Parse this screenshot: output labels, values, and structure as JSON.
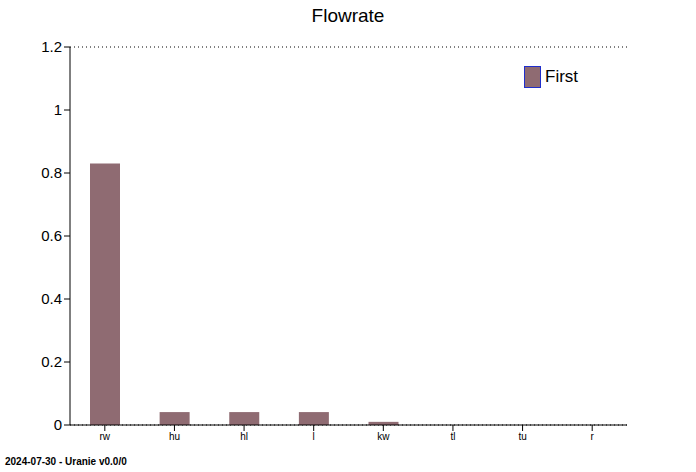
{
  "chart_data": {
    "type": "bar",
    "title": "Flowrate",
    "categories": [
      "rw",
      "hu",
      "hl",
      "l",
      "kw",
      "tl",
      "tu",
      "r"
    ],
    "series": [
      {
        "name": "First",
        "color": "#8f6b72",
        "values": [
          0.83,
          0.041,
          0.041,
          0.041,
          0.01,
          0,
          0,
          0
        ]
      }
    ],
    "ylim": [
      0,
      1.2
    ],
    "yticks": [
      0,
      0.2,
      0.4,
      0.6,
      0.8,
      1,
      1.2
    ],
    "grid": true,
    "legend": "upper right",
    "annotations": [
      "2024-07-30 - Uranie v0.0/0"
    ]
  }
}
